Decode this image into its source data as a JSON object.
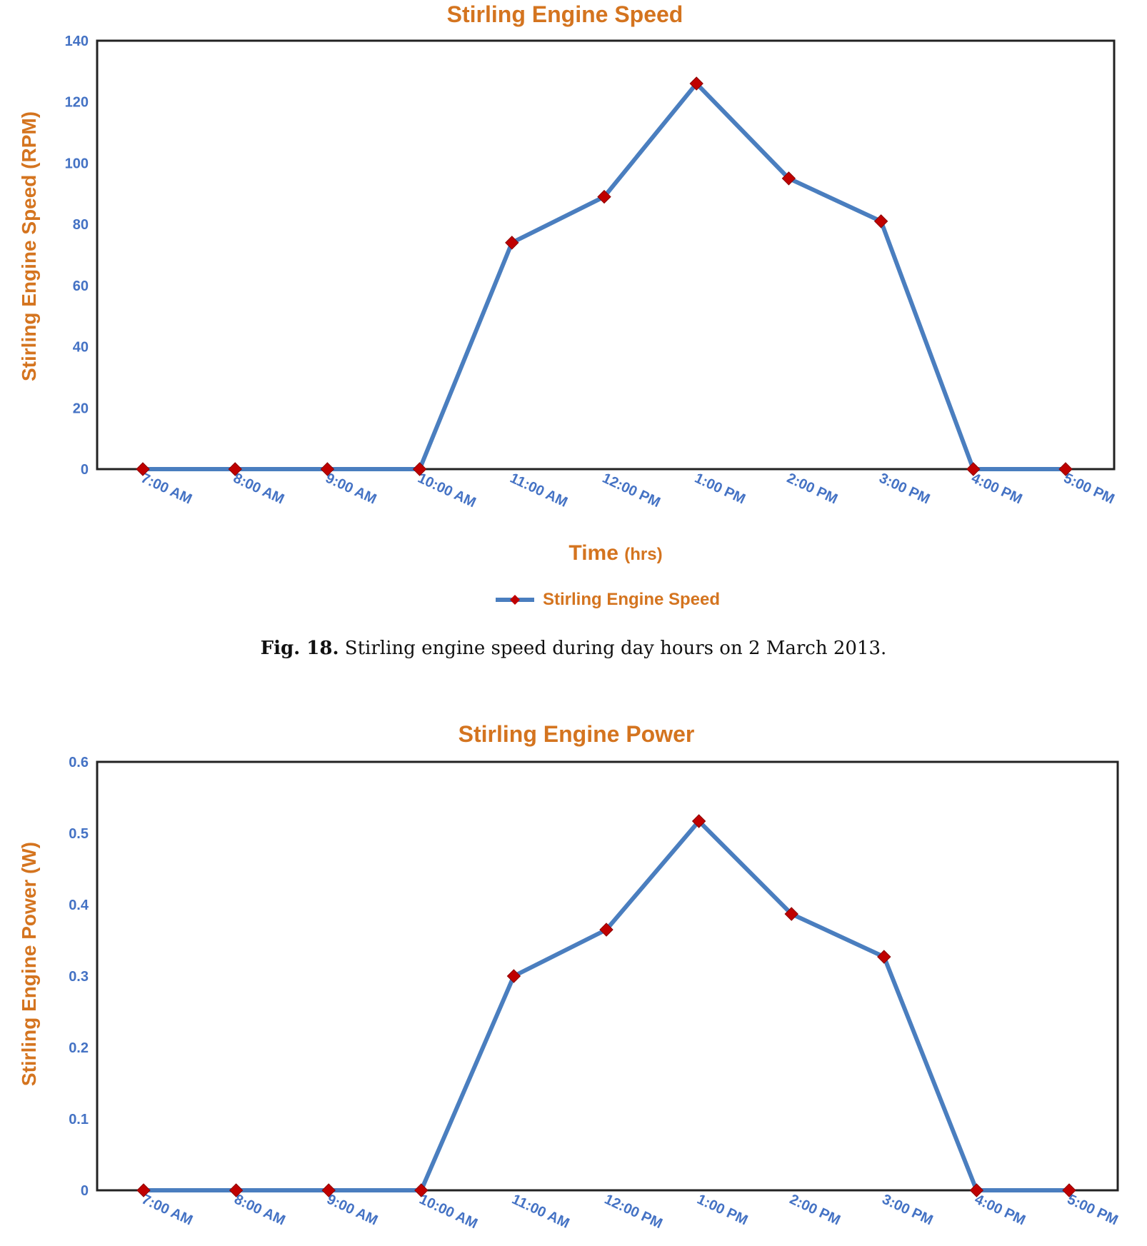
{
  "charts": [
    {
      "title": "Stirling Engine Speed",
      "ylabel": "Stirling Engine Speed (RPM)",
      "xlabel_main": "Time",
      "xlabel_unit": "(hrs)",
      "legend_label": "Stirling Engine Speed",
      "yticks": [
        "0",
        "20",
        "40",
        "60",
        "80",
        "100",
        "120",
        "140"
      ],
      "xticks": [
        "7:00 AM",
        "8:00 AM",
        "9:00 AM",
        "10:00 AM",
        "11:00 AM",
        "12:00 PM",
        "1:00 PM",
        "2:00 PM",
        "3:00 PM",
        "4:00 PM",
        "5:00 PM"
      ]
    },
    {
      "title": "Stirling Engine Power",
      "ylabel": "Stirling Engine Power (W)",
      "yticks": [
        "0",
        "0.1",
        "0.2",
        "0.3",
        "0.4",
        "0.5",
        "0.6"
      ],
      "xticks": [
        "7:00 AM",
        "8:00 AM",
        "9:00 AM",
        "10:00 AM",
        "11:00 AM",
        "12:00 PM",
        "1:00 PM",
        "2:00 PM",
        "3:00 PM",
        "4:00 PM",
        "5:00 PM"
      ]
    }
  ],
  "caption": {
    "label": "Fig. 18.",
    "text": "Stirling engine speed during day hours on 2 March 2013."
  },
  "colors": {
    "line": "#4a7ebf",
    "marker": "#c00000",
    "title": "#d4741f",
    "tick": "#4472c4"
  },
  "chart_data": [
    {
      "type": "line",
      "title": "Stirling Engine Speed",
      "xlabel": "Time (hrs)",
      "ylabel": "Stirling Engine Speed (RPM)",
      "categories": [
        "7:00 AM",
        "8:00 AM",
        "9:00 AM",
        "10:00 AM",
        "11:00 AM",
        "12:00 PM",
        "1:00 PM",
        "2:00 PM",
        "3:00 PM",
        "4:00 PM",
        "5:00 PM"
      ],
      "series": [
        {
          "name": "Stirling Engine Speed",
          "values": [
            0,
            0,
            0,
            0,
            74,
            89,
            126,
            95,
            81,
            0,
            0
          ]
        }
      ],
      "ylim": [
        0,
        140
      ],
      "grid": false,
      "legend": "bottom-center"
    },
    {
      "type": "line",
      "title": "Stirling Engine Power",
      "ylabel": "Stirling Engine Power (W)",
      "categories": [
        "7:00 AM",
        "8:00 AM",
        "9:00 AM",
        "10:00 AM",
        "11:00 AM",
        "12:00 PM",
        "1:00 PM",
        "2:00 PM",
        "3:00 PM",
        "4:00 PM",
        "5:00 PM"
      ],
      "series": [
        {
          "values": [
            0,
            0,
            0,
            0,
            0.3,
            0.365,
            0.517,
            0.387,
            0.327,
            0,
            0
          ]
        }
      ],
      "ylim": [
        0,
        0.6
      ],
      "grid": false
    }
  ]
}
